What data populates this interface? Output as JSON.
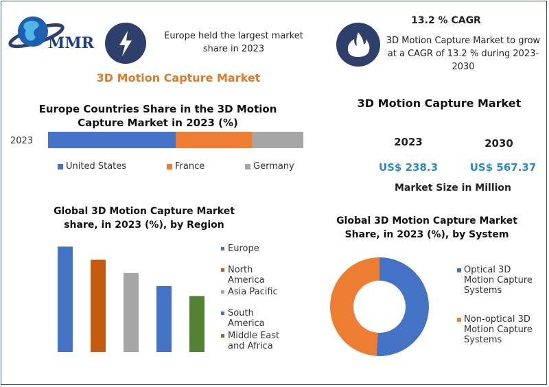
{
  "logo": {
    "text": "MMR"
  },
  "header": {
    "left_text": "Europe held the largest market share in 2023",
    "cagr_title": "13.2 % CAGR",
    "cagr_text": "3D Motion Capture Market to grow at a CAGR of 13.2 % during 2023-2030",
    "main_title": "3D Motion Capture Market"
  },
  "market_size": {
    "title": "3D Motion Capture Market",
    "year1": "2023",
    "year2": "2030",
    "value1": "US$ 238.3",
    "value2": "US$ 567.37",
    "caption": "Market Size in Million"
  },
  "colors": {
    "blue": "#4472c4",
    "orange": "#ed7d31",
    "gray": "#a5a5a5",
    "dark_orange": "#c55a11",
    "green": "#548235",
    "navy": "#2f3f6b"
  },
  "icons": {
    "left": "lightning-icon",
    "right": "flame-icon"
  },
  "chart_data": [
    {
      "type": "bar",
      "orientation": "horizontal-stacked",
      "title": "Europe Countries Share in the  3D Motion Capture Market in 2023 (%)",
      "categories": [
        "2023"
      ],
      "series": [
        {
          "name": "United States",
          "values": [
            50
          ],
          "color": "#4472c4"
        },
        {
          "name": "France",
          "values": [
            30
          ],
          "color": "#ed7d31"
        },
        {
          "name": "Germany",
          "values": [
            20
          ],
          "color": "#a5a5a5"
        }
      ],
      "legend": "bottom"
    },
    {
      "type": "bar",
      "title": "Global 3D Motion Capture Market share, in 2023 (%), by Region",
      "categories": [
        "Europe",
        "North America",
        "Asia Pacific",
        "South America",
        "Middle East and Africa"
      ],
      "values": [
        32,
        28,
        24,
        20,
        17
      ],
      "colors": [
        "#4472c4",
        "#c55a11",
        "#a5a5a5",
        "#4472c4",
        "#548235"
      ],
      "ylim": [
        0,
        35
      ],
      "legend": "right"
    },
    {
      "type": "pie",
      "variant": "donut",
      "title": "Global 3D Motion Capture Market Share, in 2023 (%), by System",
      "labels": [
        "Optical 3D Motion Capture Systems",
        "Non-optical 3D Motion Capture Systems"
      ],
      "values": [
        51,
        49
      ],
      "colors": [
        "#4472c4",
        "#ed7d31"
      ],
      "legend": "right"
    }
  ]
}
